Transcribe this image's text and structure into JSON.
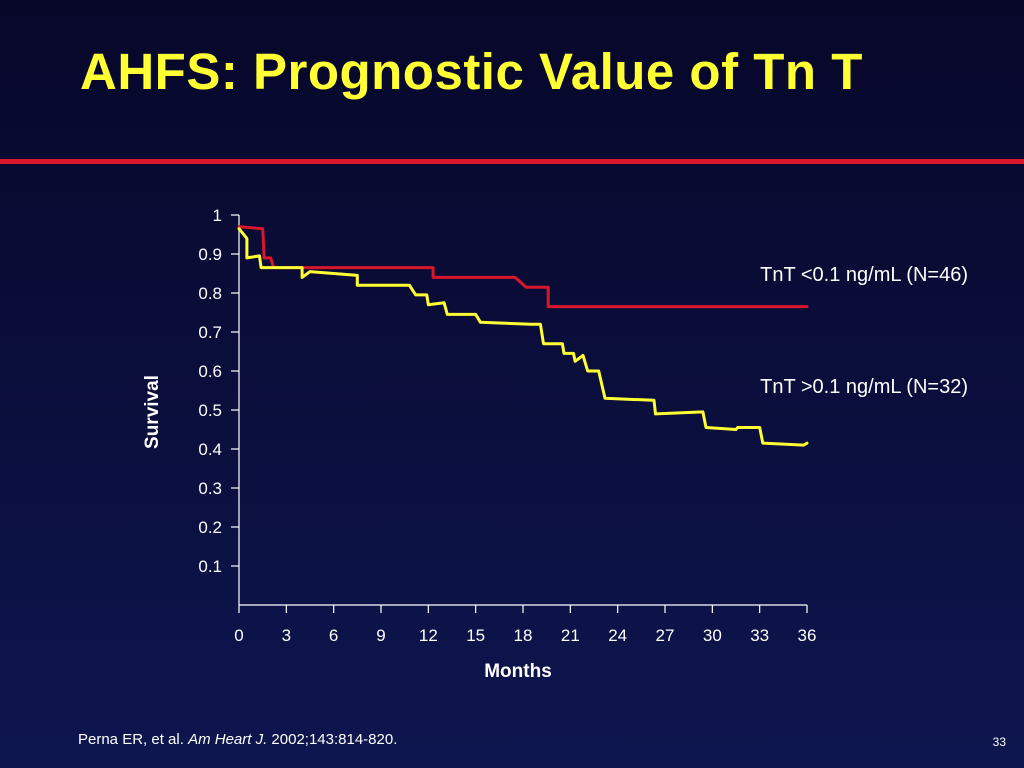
{
  "slide": {
    "title": "AHFS: Prognostic Value of Tn T",
    "citation_authors": "Perna ER, et al. ",
    "citation_journal": "Am Heart J.",
    "citation_rest": " 2002;143:814-820.",
    "page_number": "33"
  },
  "colors": {
    "background": "#0b0f3d",
    "title": "#ffff33",
    "rule": "#d8162c",
    "series_low": "#d8162c",
    "series_high": "#ffff33",
    "text": "#ffffff"
  },
  "chart_data": {
    "type": "line",
    "xlabel": "Months",
    "ylabel": "Survival",
    "xlim": [
      0,
      36
    ],
    "ylim": [
      0,
      1
    ],
    "x_ticks": [
      0,
      3,
      6,
      9,
      12,
      15,
      18,
      21,
      24,
      27,
      30,
      33,
      36
    ],
    "y_ticks": [
      0.1,
      0.2,
      0.3,
      0.4,
      0.5,
      0.6,
      0.7,
      0.8,
      0.9,
      1
    ],
    "grid": false,
    "series": [
      {
        "name": "TnT <0.1 ng/mL (N=46)",
        "color": "#d8162c",
        "points": [
          [
            0,
            0.97
          ],
          [
            1.5,
            0.965
          ],
          [
            1.6,
            0.89
          ],
          [
            2.0,
            0.89
          ],
          [
            2.2,
            0.865
          ],
          [
            12.3,
            0.865
          ],
          [
            12.3,
            0.84
          ],
          [
            17.5,
            0.84
          ],
          [
            18.2,
            0.815
          ],
          [
            19.6,
            0.815
          ],
          [
            19.6,
            0.765
          ],
          [
            36,
            0.765
          ]
        ]
      },
      {
        "name": "TnT >0.1 ng/mL (N=32)",
        "color": "#ffff33",
        "points": [
          [
            0,
            0.965
          ],
          [
            0.5,
            0.94
          ],
          [
            0.5,
            0.89
          ],
          [
            1.3,
            0.895
          ],
          [
            1.4,
            0.865
          ],
          [
            4.0,
            0.865
          ],
          [
            4.0,
            0.84
          ],
          [
            4.5,
            0.855
          ],
          [
            7.5,
            0.845
          ],
          [
            7.5,
            0.82
          ],
          [
            10.8,
            0.82
          ],
          [
            11.2,
            0.795
          ],
          [
            11.9,
            0.795
          ],
          [
            12.0,
            0.77
          ],
          [
            13.0,
            0.775
          ],
          [
            13.2,
            0.745
          ],
          [
            15.0,
            0.745
          ],
          [
            15.3,
            0.725
          ],
          [
            18.5,
            0.72
          ],
          [
            19.1,
            0.72
          ],
          [
            19.3,
            0.67
          ],
          [
            20.5,
            0.67
          ],
          [
            20.6,
            0.645
          ],
          [
            21.2,
            0.645
          ],
          [
            21.3,
            0.625
          ],
          [
            21.8,
            0.64
          ],
          [
            22.1,
            0.6
          ],
          [
            22.8,
            0.6
          ],
          [
            23.2,
            0.53
          ],
          [
            26.3,
            0.525
          ],
          [
            26.4,
            0.49
          ],
          [
            29.4,
            0.495
          ],
          [
            29.6,
            0.455
          ],
          [
            31.5,
            0.45
          ],
          [
            31.6,
            0.455
          ],
          [
            33.0,
            0.455
          ],
          [
            33.2,
            0.415
          ],
          [
            35.8,
            0.41
          ],
          [
            36,
            0.415
          ]
        ]
      }
    ]
  }
}
